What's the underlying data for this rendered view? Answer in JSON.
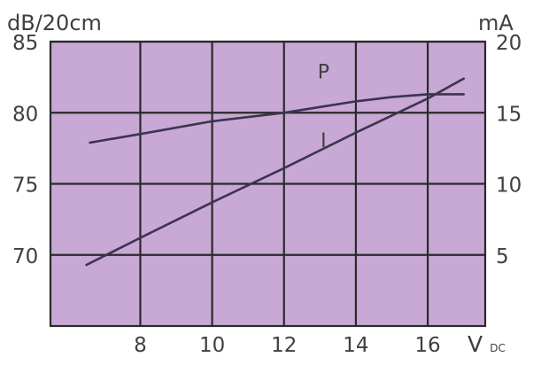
{
  "chart_data": {
    "type": "line",
    "x_axis": {
      "label": "V",
      "label_subscript": "DC",
      "range": [
        5.5,
        17.6
      ],
      "ticks": [
        8,
        10,
        12,
        14,
        16
      ]
    },
    "y_left_axis": {
      "label": "dB/20cm",
      "range": [
        65,
        85
      ],
      "ticks": [
        70,
        75,
        80,
        85
      ]
    },
    "y_right_axis": {
      "label": "mA",
      "range": [
        0,
        20
      ],
      "ticks": [
        5,
        10,
        15,
        20
      ]
    },
    "grid": true,
    "colors": {
      "plot_background": "#c8a8d4",
      "grid": "#2a2a2a",
      "line": "#3c3450",
      "text": "#3f3f3f"
    },
    "series": [
      {
        "name": "P",
        "axis": "left",
        "points": [
          [
            6.6,
            77.9
          ],
          [
            8,
            78.5
          ],
          [
            10,
            79.4
          ],
          [
            12,
            80.0
          ],
          [
            13,
            80.4
          ],
          [
            14,
            80.8
          ],
          [
            15,
            81.1
          ],
          [
            16,
            81.3
          ],
          [
            17.0,
            81.3
          ]
        ]
      },
      {
        "name": "I",
        "axis": "right",
        "points": [
          [
            6.5,
            4.3
          ],
          [
            8,
            6.2
          ],
          [
            10,
            8.7
          ],
          [
            12,
            11.1
          ],
          [
            14,
            13.6
          ],
          [
            16,
            16.0
          ],
          [
            17.0,
            17.4
          ]
        ]
      }
    ]
  }
}
